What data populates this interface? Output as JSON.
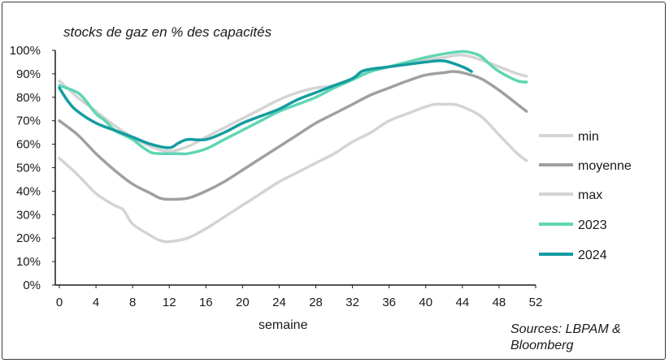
{
  "chart_data": {
    "type": "line",
    "title": "stocks de gaz en % des capacités",
    "xlabel": "semaine",
    "ylabel": "",
    "xlim": [
      0,
      52
    ],
    "ylim": [
      0,
      100
    ],
    "x_ticks": [
      0,
      4,
      8,
      12,
      16,
      20,
      24,
      28,
      32,
      36,
      40,
      44,
      48,
      52
    ],
    "y_ticks": [
      "0%",
      "10%",
      "20%",
      "30%",
      "40%",
      "50%",
      "60%",
      "70%",
      "80%",
      "90%",
      "100%"
    ],
    "legend_position": "right",
    "series": [
      {
        "name": "min",
        "color": "#d4d4d4",
        "x": [
          0,
          2,
          4,
          6,
          7,
          8,
          10,
          11,
          12,
          14,
          16,
          18,
          20,
          22,
          24,
          26,
          28,
          30,
          32,
          34,
          36,
          38,
          40,
          41,
          42,
          43,
          44,
          46,
          48,
          50,
          51
        ],
        "y": [
          54,
          47,
          39,
          34,
          32,
          26,
          21,
          19,
          18.5,
          20,
          24,
          29,
          34,
          39,
          44,
          48,
          52,
          56,
          61,
          65,
          70,
          73,
          76,
          77,
          77,
          77,
          76,
          72,
          64,
          56,
          53
        ]
      },
      {
        "name": "moyenne",
        "color": "#a0a0a0",
        "x": [
          0,
          2,
          4,
          6,
          8,
          10,
          11,
          12,
          14,
          16,
          18,
          20,
          22,
          24,
          26,
          28,
          30,
          32,
          34,
          36,
          38,
          40,
          42,
          43,
          44,
          46,
          48,
          50,
          51
        ],
        "y": [
          70,
          64,
          56,
          49,
          43,
          39,
          37,
          36.5,
          37,
          40,
          44,
          49,
          54,
          59,
          64,
          69,
          73,
          77,
          81,
          84,
          87,
          89.5,
          90.5,
          91,
          90.5,
          88,
          83,
          77,
          74
        ]
      },
      {
        "name": "max",
        "color": "#d4d4d4",
        "x": [
          0,
          2,
          4,
          6,
          8,
          10,
          12,
          14,
          16,
          18,
          20,
          22,
          24,
          26,
          28,
          30,
          32,
          34,
          36,
          38,
          40,
          42,
          44,
          46,
          48,
          50,
          51
        ],
        "y": [
          87,
          80,
          74,
          68,
          63,
          59,
          57,
          59,
          63,
          67,
          71,
          75,
          79,
          82,
          84,
          85,
          88,
          91,
          93,
          95,
          96,
          97,
          98,
          96,
          93,
          90,
          89
        ]
      },
      {
        "name": "2023",
        "color": "#5fd6b3",
        "x": [
          0,
          2,
          3,
          4,
          5,
          6,
          7,
          8,
          9,
          10,
          11,
          12,
          13,
          14,
          16,
          18,
          20,
          22,
          24,
          26,
          28,
          30,
          32,
          34,
          36,
          38,
          40,
          42,
          44,
          45,
          46,
          47,
          48,
          50,
          51
        ],
        "y": [
          85,
          82,
          78,
          73,
          70,
          66,
          64,
          62,
          59,
          56.5,
          56,
          56,
          56,
          56,
          58,
          62,
          66,
          70,
          74,
          77,
          80,
          84,
          87.5,
          91,
          93,
          95,
          97,
          98.5,
          99.5,
          99,
          97.5,
          94,
          91,
          87,
          86.5
        ]
      },
      {
        "name": "2024",
        "color": "#149ca0",
        "x": [
          0,
          1,
          2,
          4,
          6,
          8,
          10,
          12,
          13,
          14,
          16,
          18,
          20,
          22,
          24,
          26,
          28,
          30,
          32,
          33,
          34,
          36,
          38,
          40,
          42,
          44,
          45
        ],
        "y": [
          84,
          78,
          74,
          69,
          66,
          63,
          60,
          58.5,
          60.5,
          62,
          62,
          65,
          69,
          72,
          75,
          79,
          82,
          85,
          88,
          91,
          92,
          93,
          94,
          95,
          95.5,
          93,
          91
        ]
      }
    ]
  }
}
